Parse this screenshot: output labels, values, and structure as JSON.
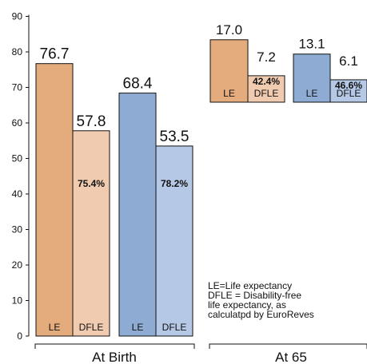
{
  "chart_data": {
    "type": "bar",
    "title": "",
    "xlabel": "",
    "ylabel": "",
    "ylim": [
      0,
      90
    ],
    "y_ticks": [
      0,
      10,
      20,
      30,
      40,
      50,
      60,
      70,
      80,
      90
    ],
    "groups": [
      {
        "label": "At Birth",
        "bars": [
          {
            "tag": "LE",
            "value": 76.7,
            "value_label": "76.7",
            "color": "#e4ab7d"
          },
          {
            "tag": "DFLE",
            "value": 57.8,
            "value_label": "57.8",
            "pct_label": "75.4%",
            "color": "#f1cbb0"
          },
          {
            "tag": "LE",
            "value": 68.4,
            "value_label": "68.4",
            "color": "#8eabd4"
          },
          {
            "tag": "DFLE",
            "value": 53.5,
            "value_label": "53.5",
            "pct_label": "78.2%",
            "color": "#b5c8e5"
          }
        ]
      },
      {
        "label": "At 65",
        "bars": [
          {
            "tag": "LE",
            "value": 17.0,
            "value_label": "17.0",
            "color": "#e4ab7d"
          },
          {
            "tag": "DFLE",
            "value": 7.2,
            "value_label": "7.2",
            "pct_label": "42.4%",
            "color": "#f1cbb0"
          },
          {
            "tag": "LE",
            "value": 13.1,
            "value_label": "13.1",
            "color": "#8eabd4"
          },
          {
            "tag": "DFLE",
            "value": 6.1,
            "value_label": "6.1",
            "pct_label": "46.6%",
            "color": "#b5c8e5"
          }
        ]
      }
    ],
    "notes": [
      "LE=Life expectancy",
      "DFLE = Disability-free",
      "life expectancy, as",
      "calculatpd by EuroReves"
    ],
    "grid": false
  }
}
